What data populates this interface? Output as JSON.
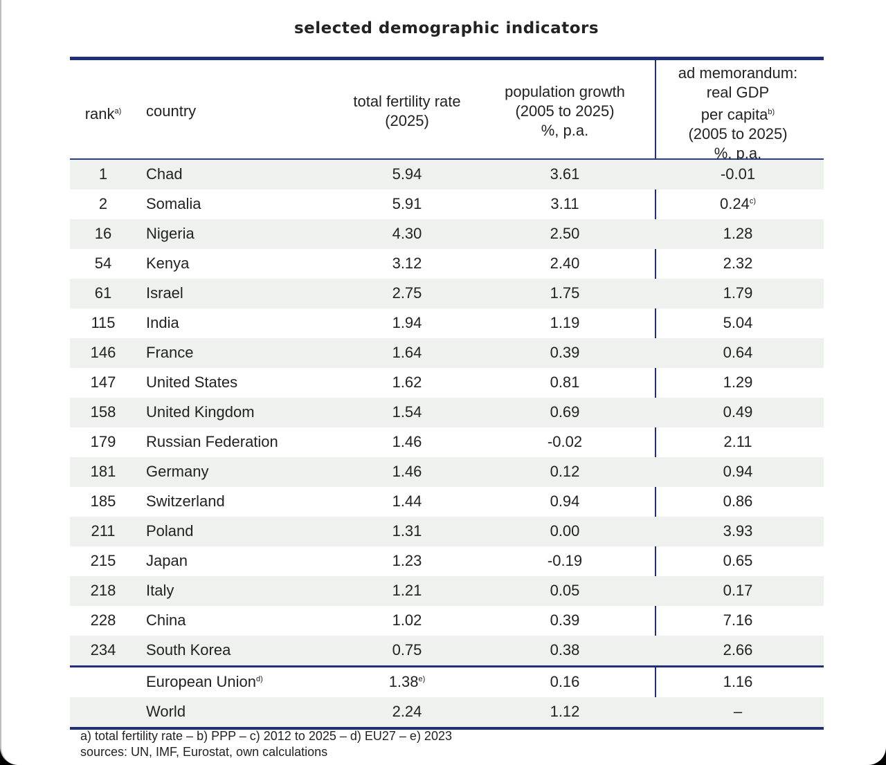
{
  "title": "selected demographic indicators",
  "headers": {
    "rank": "rank",
    "rank_note": "a)",
    "country": "country",
    "tfr_1": "total fertility rate",
    "tfr_2": "(2025)",
    "pop_1": "population growth",
    "pop_2": "(2005 to 2025)",
    "pop_3": "%, p.a.",
    "gdp_1": "ad memorandum:",
    "gdp_2": "real GDP",
    "gdp_3": "per capita",
    "gdp_3_note": "b)",
    "gdp_4": "(2005 to 2025)",
    "gdp_5": "%, p.a."
  },
  "rows": [
    {
      "rank": "1",
      "country": "Chad",
      "tfr": "5.94",
      "pop": "3.61",
      "gdp": "-0.01"
    },
    {
      "rank": "2",
      "country": "Somalia",
      "tfr": "5.91",
      "pop": "3.11",
      "gdp": "0.24",
      "gdp_note": "c)"
    },
    {
      "rank": "16",
      "country": "Nigeria",
      "tfr": "4.30",
      "pop": "2.50",
      "gdp": "1.28"
    },
    {
      "rank": "54",
      "country": "Kenya",
      "tfr": "3.12",
      "pop": "2.40",
      "gdp": "2.32"
    },
    {
      "rank": "61",
      "country": "Israel",
      "tfr": "2.75",
      "pop": "1.75",
      "gdp": "1.79"
    },
    {
      "rank": "115",
      "country": "India",
      "tfr": "1.94",
      "pop": "1.19",
      "gdp": "5.04"
    },
    {
      "rank": "146",
      "country": "France",
      "tfr": "1.64",
      "pop": "0.39",
      "gdp": "0.64"
    },
    {
      "rank": "147",
      "country": "United States",
      "tfr": "1.62",
      "pop": "0.81",
      "gdp": "1.29"
    },
    {
      "rank": "158",
      "country": "United Kingdom",
      "tfr": "1.54",
      "pop": "0.69",
      "gdp": "0.49"
    },
    {
      "rank": "179",
      "country": "Russian Federation",
      "tfr": "1.46",
      "pop": "-0.02",
      "gdp": "2.11"
    },
    {
      "rank": "181",
      "country": "Germany",
      "tfr": "1.46",
      "pop": "0.12",
      "gdp": "0.94"
    },
    {
      "rank": "185",
      "country": "Switzerland",
      "tfr": "1.44",
      "pop": "0.94",
      "gdp": "0.86"
    },
    {
      "rank": "211",
      "country": "Poland",
      "tfr": "1.31",
      "pop": "0.00",
      "gdp": "3.93"
    },
    {
      "rank": "215",
      "country": "Japan",
      "tfr": "1.23",
      "pop": "-0.19",
      "gdp": "0.65"
    },
    {
      "rank": "218",
      "country": "Italy",
      "tfr": "1.21",
      "pop": "0.05",
      "gdp": "0.17"
    },
    {
      "rank": "228",
      "country": "China",
      "tfr": "1.02",
      "pop": "0.39",
      "gdp": "7.16"
    },
    {
      "rank": "234",
      "country": "South Korea",
      "tfr": "0.75",
      "pop": "0.38",
      "gdp": "2.66"
    }
  ],
  "aggregates": [
    {
      "country": "European Union",
      "country_note": "d)",
      "tfr": "1.38",
      "tfr_note": "e)",
      "pop": "0.16",
      "gdp": "1.16"
    },
    {
      "country": "World",
      "tfr": "2.24",
      "pop": "1.12",
      "gdp": "–"
    }
  ],
  "footnotes": "a) total fertility rate  –  b) PPP  –  c) 2012 to 2025  –  d) EU27  –  e) 2023",
  "sources": "sources: UN, IMF, Eurostat, own calculations"
}
